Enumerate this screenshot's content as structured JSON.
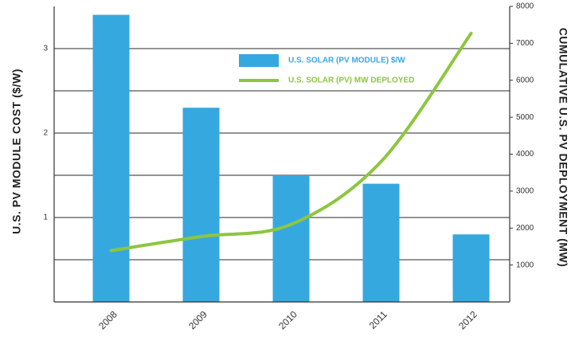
{
  "chart_data": {
    "type": "bar",
    "categories": [
      "2008",
      "2009",
      "2010",
      "2011",
      "2012"
    ],
    "ylabel": "U.S. PV MODULE COST ($/W)",
    "y2label": "CUMULATIVE U.S. PV DEPLOYMENT (MW)",
    "ylim": [
      0,
      3.5
    ],
    "yticks": [
      1,
      2,
      3
    ],
    "y2lim": [
      0,
      8000
    ],
    "y2ticks": [
      1000,
      2000,
      3000,
      4000,
      5000,
      6000,
      7000,
      8000
    ],
    "grid": true,
    "series": [
      {
        "name": "U.S. SOLAR (PV MODULE) $/W",
        "type": "bar",
        "color": "#35a8e0",
        "values": [
          3.4,
          2.3,
          1.5,
          1.4,
          0.8
        ]
      },
      {
        "name": "U.S. SOLAR (PV) MW DEPLOYED",
        "type": "line",
        "color": "#8dc63f",
        "axis": "y2",
        "values": [
          1390,
          1770,
          2100,
          3800,
          7270
        ]
      }
    ]
  }
}
